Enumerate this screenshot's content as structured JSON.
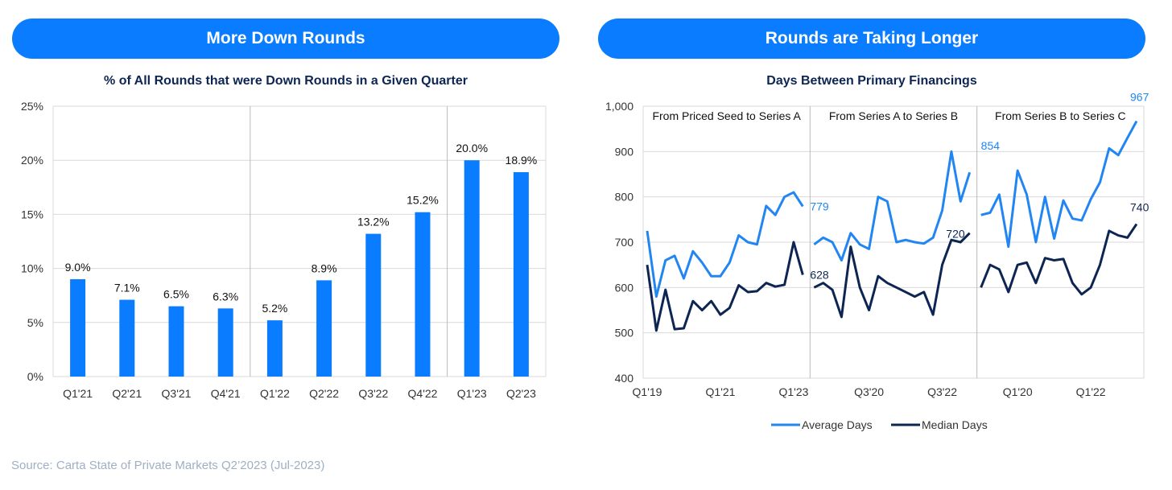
{
  "source": "Source: Carta State of Private Markets Q2’2023 (Jul-2023)",
  "colors": {
    "accent": "#0a7cff",
    "avg": "#2286f2",
    "median": "#0d2552",
    "grid": "#d9d9d9"
  },
  "chart_data": [
    {
      "type": "bar",
      "header": "More Down Rounds",
      "title": "% of All Rounds that were Down Rounds in a Given Quarter",
      "categories": [
        "Q1'21",
        "Q2'21",
        "Q3'21",
        "Q4'21",
        "Q1'22",
        "Q2'22",
        "Q3'22",
        "Q4'22",
        "Q1'23",
        "Q2'23"
      ],
      "values": [
        9.0,
        7.1,
        6.5,
        6.3,
        5.2,
        8.9,
        13.2,
        15.2,
        20.0,
        18.9
      ],
      "data_labels": [
        "9.0%",
        "7.1%",
        "6.5%",
        "6.3%",
        "5.2%",
        "8.9%",
        "13.2%",
        "15.2%",
        "20.0%",
        "18.9%"
      ],
      "ylim": [
        0,
        25
      ],
      "yticks": [
        "0%",
        "5%",
        "10%",
        "15%",
        "20%",
        "25%"
      ],
      "xlabel": "",
      "ylabel": "",
      "grid": true
    },
    {
      "type": "line",
      "header": "Rounds are Taking Longer",
      "title": "Days Between Primary Financings",
      "ylim": [
        400,
        1000
      ],
      "yticks": [
        "400",
        "500",
        "600",
        "700",
        "800",
        "900",
        "1,000"
      ],
      "xtick_labels": [
        "Q1'19",
        "Q1'21",
        "Q1'23",
        "Q3'20",
        "Q3'22",
        "Q1'20",
        "Q1'22"
      ],
      "legend": [
        "Average Days",
        "Median Days"
      ],
      "panels": [
        {
          "label": "From Priced Seed to Series A",
          "average": [
            725,
            580,
            660,
            670,
            620,
            680,
            655,
            625,
            625,
            655,
            715,
            700,
            695,
            780,
            760,
            800,
            810,
            779
          ],
          "median": [
            650,
            505,
            595,
            508,
            510,
            570,
            550,
            570,
            540,
            555,
            605,
            590,
            592,
            610,
            602,
            606,
            700,
            628
          ],
          "end_avg_label": "779",
          "end_med_label": "628"
        },
        {
          "label": "From Series A to Series B",
          "average": [
            695,
            710,
            700,
            660,
            720,
            695,
            685,
            800,
            790,
            700,
            705,
            700,
            697,
            710,
            770,
            900,
            790,
            854
          ],
          "median": [
            600,
            610,
            595,
            535,
            690,
            600,
            550,
            625,
            610,
            600,
            590,
            580,
            590,
            540,
            650,
            705,
            700,
            720
          ],
          "end_avg_label": "854",
          "end_med_label": "720"
        },
        {
          "label": "From Series B to Series C",
          "average": [
            760,
            765,
            805,
            690,
            858,
            805,
            700,
            800,
            708,
            792,
            752,
            748,
            795,
            832,
            907,
            892,
            930,
            967
          ],
          "median": [
            600,
            650,
            640,
            590,
            650,
            655,
            610,
            665,
            660,
            663,
            610,
            585,
            600,
            650,
            725,
            715,
            710,
            740
          ],
          "end_avg_label": "967",
          "end_med_label": "740"
        }
      ]
    }
  ]
}
